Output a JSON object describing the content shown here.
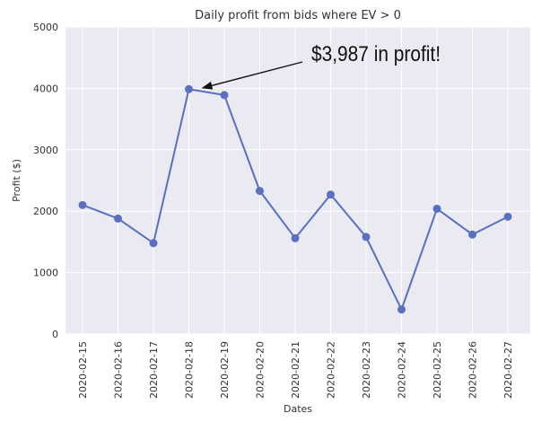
{
  "chart_data": {
    "type": "line",
    "title": "Daily profit from bids where EV > 0",
    "xlabel": "Dates",
    "ylabel": "Profit ($)",
    "ylim": [
      0,
      5000
    ],
    "yticks": [
      0,
      1000,
      2000,
      3000,
      4000,
      5000
    ],
    "grid": true,
    "x": [
      "2020-02-15",
      "2020-02-16",
      "2020-02-17",
      "2020-02-18",
      "2020-02-19",
      "2020-02-20",
      "2020-02-21",
      "2020-02-22",
      "2020-02-23",
      "2020-02-24",
      "2020-02-25",
      "2020-02-26",
      "2020-02-27"
    ],
    "series": [
      {
        "values": [
          2100,
          1880,
          1480,
          3987,
          3890,
          2330,
          1560,
          2270,
          1580,
          400,
          2040,
          1620,
          1910
        ]
      }
    ],
    "annotation": {
      "text": "$3,987 in profit!",
      "point_index": 3
    },
    "colors": {
      "line": "#5a6fbf",
      "plot_bg": "#eaeaf2",
      "grid": "#ffffff"
    }
  }
}
